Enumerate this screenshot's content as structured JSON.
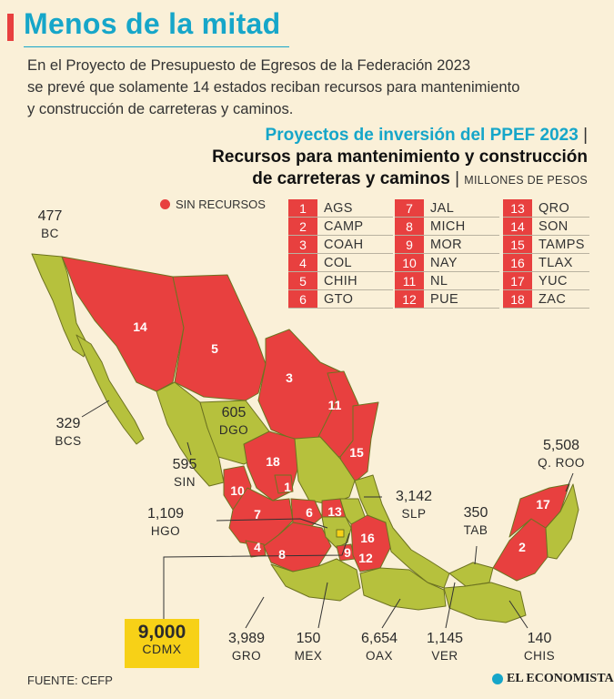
{
  "title": "Menos de la mitad",
  "intro": [
    "En el Proyecto de Presupuesto de Egresos de la Federación 2023",
    "se prevé que solamente 14 estados reciban recursos para mantenimiento",
    "y construcción de carreteras y caminos."
  ],
  "subtitle": {
    "line1": "Proyectos de inversión del PPEF 2023",
    "line2": "Recursos para mantenimiento y construcción",
    "line3": "de carreteras y caminos",
    "units": "MILLONES DE PESOS",
    "separator": "|"
  },
  "legend": "SIN RECURSOS",
  "no_resources_states": [
    {
      "n": "1",
      "abbr": "AGS"
    },
    {
      "n": "2",
      "abbr": "CAMP"
    },
    {
      "n": "3",
      "abbr": "COAH"
    },
    {
      "n": "4",
      "abbr": "COL"
    },
    {
      "n": "5",
      "abbr": "CHIH"
    },
    {
      "n": "6",
      "abbr": "GTO"
    },
    {
      "n": "7",
      "abbr": "JAL"
    },
    {
      "n": "8",
      "abbr": "MICH"
    },
    {
      "n": "9",
      "abbr": "MOR"
    },
    {
      "n": "10",
      "abbr": "NAY"
    },
    {
      "n": "11",
      "abbr": "NL"
    },
    {
      "n": "12",
      "abbr": "PUE"
    },
    {
      "n": "13",
      "abbr": "QRO"
    },
    {
      "n": "14",
      "abbr": "SON"
    },
    {
      "n": "15",
      "abbr": "TAMPS"
    },
    {
      "n": "16",
      "abbr": "TLAX"
    },
    {
      "n": "17",
      "abbr": "YUC"
    },
    {
      "n": "18",
      "abbr": "ZAC"
    }
  ],
  "funded_states": {
    "bc": {
      "value": "477",
      "state": "BC"
    },
    "bcs": {
      "value": "329",
      "state": "BCS"
    },
    "dgo": {
      "value": "605",
      "state": "DGO"
    },
    "sin": {
      "value": "595",
      "state": "SIN"
    },
    "hgo": {
      "value": "1,109",
      "state": "HGO"
    },
    "slp": {
      "value": "3,142",
      "state": "SLP"
    },
    "qroo": {
      "value": "5,508",
      "state": "Q. ROO"
    },
    "tab": {
      "value": "350",
      "state": "TAB"
    },
    "cdmx": {
      "value": "9,000",
      "state": "CDMX"
    },
    "gro": {
      "value": "3,989",
      "state": "GRO"
    },
    "mex": {
      "value": "150",
      "state": "MEX"
    },
    "oax": {
      "value": "6,654",
      "state": "OAX"
    },
    "ver": {
      "value": "1,145",
      "state": "VER"
    },
    "chis": {
      "value": "140",
      "state": "CHIS"
    }
  },
  "colors": {
    "funded": "#b6c13d",
    "no_resources": "#e8403f",
    "highlight": "#f7d117",
    "accent": "#16a6c9",
    "background": "#faf0d8"
  },
  "source": "FUENTE: CEFP",
  "brand": "EL ECONOMISTA"
}
